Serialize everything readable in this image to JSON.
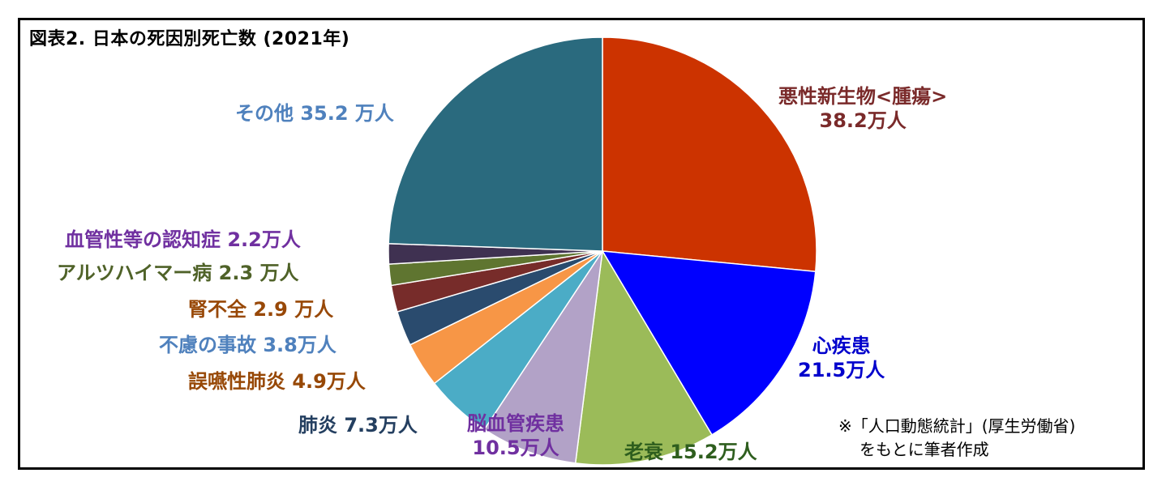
{
  "chart_data": {
    "type": "pie",
    "title": "図表2. 日本の死因別死亡数 (2021年)",
    "unit": "万人",
    "slices": [
      {
        "name": "悪性新生物<腫瘍>",
        "value": 38.2,
        "value_label": "38.2万人",
        "color": "#cc3300",
        "label_color": "#7a2a2a"
      },
      {
        "name": "心疾患",
        "value": 21.5,
        "value_label": "21.5万人",
        "color": "#0000ff",
        "label_color": "#0000cc"
      },
      {
        "name": "老衰",
        "value": 15.2,
        "value_label": "15.2万人",
        "color": "#9bbb59",
        "label_color": "#2e5e1e"
      },
      {
        "name": "脳血管疾患",
        "value": 10.5,
        "value_label": "10.5万人",
        "color": "#b2a2c7",
        "label_color": "#7030a0"
      },
      {
        "name": "肺炎",
        "value": 7.3,
        "value_label": "7.3万人",
        "color": "#4bacc6",
        "label_color": "#243f60"
      },
      {
        "name": "誤嚥性肺炎",
        "value": 4.9,
        "value_label": "4.9万人",
        "color": "#f79646",
        "label_color": "#974806"
      },
      {
        "name": "不慮の事故",
        "value": 3.8,
        "value_label": "3.8万人",
        "color": "#2a4b6e",
        "label_color": "#4f81bd"
      },
      {
        "name": "腎不全",
        "value": 2.9,
        "value_label": "2.9 万人",
        "color": "#772c2a",
        "label_color": "#984807"
      },
      {
        "name": "アルツハイマー病",
        "value": 2.3,
        "value_label": "2.3 万人",
        "color": "#5f7530",
        "label_color": "#4f6228"
      },
      {
        "name": "血管性等の認知症",
        "value": 2.2,
        "value_label": "2.2万人",
        "color": "#3f3151",
        "label_color": "#7030a0"
      },
      {
        "name": "その他",
        "value": 35.2,
        "value_label": "35.2 万人",
        "color": "#2a6a7e",
        "label_color": "#4f81bd"
      }
    ]
  },
  "note": {
    "line1": "※「人口動態統計」(厚生労働省)",
    "line2": "をもとに筆者作成"
  }
}
